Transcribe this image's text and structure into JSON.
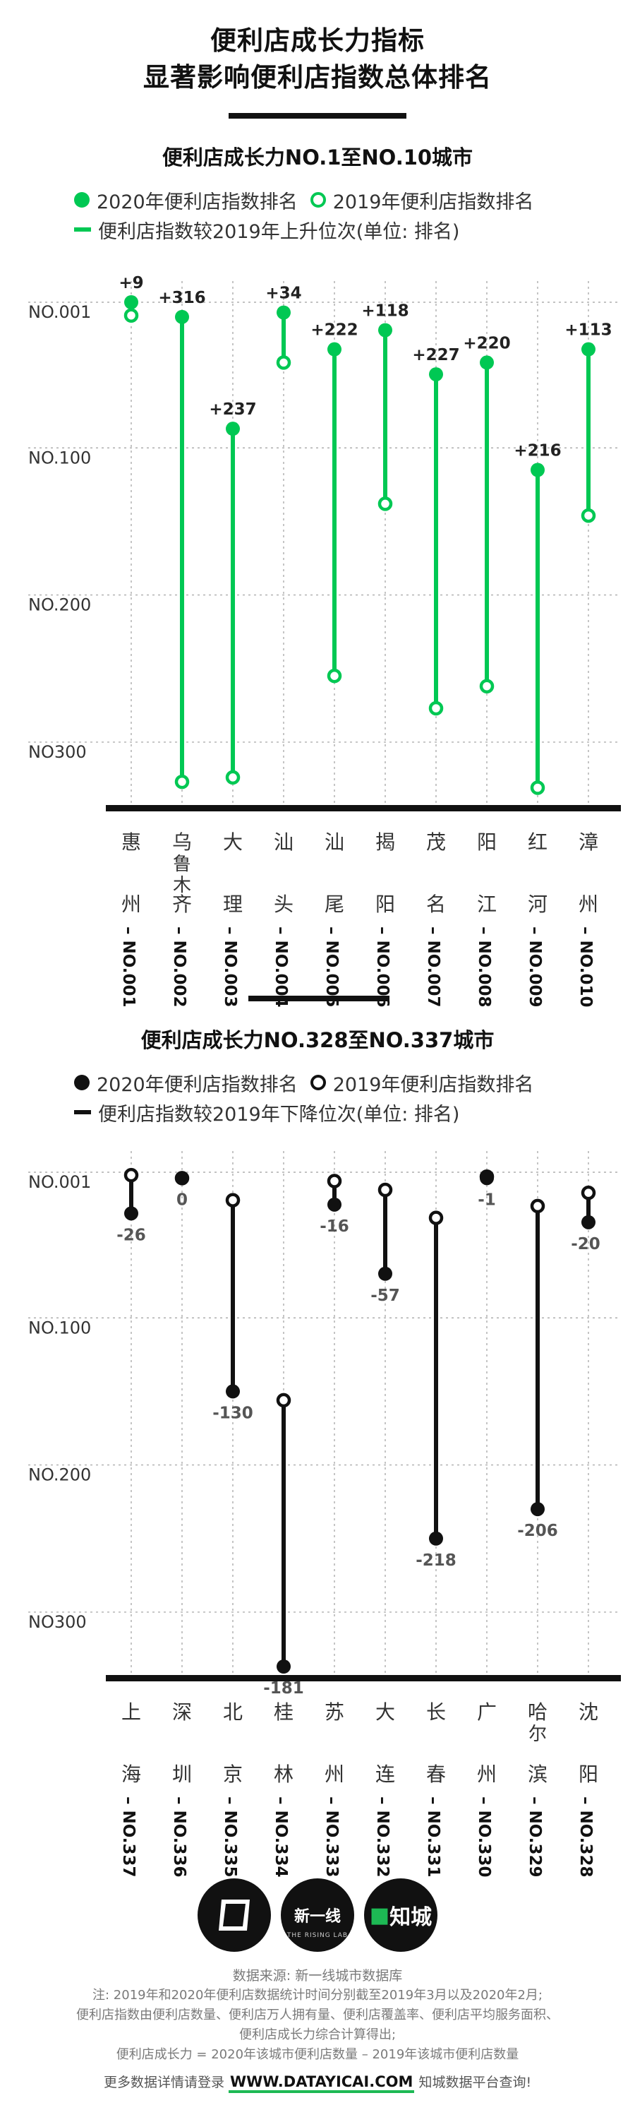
{
  "title": {
    "line1": "便利店成长力指标",
    "line2": "显著影响便利店指数总体排名"
  },
  "colors": {
    "top_accent": "#00c853",
    "bottom_accent": "#111111",
    "grid": "#9e9e9e",
    "axis": "#111111"
  },
  "chart_data": [
    {
      "type": "dumbbell",
      "title": "便利店成长力NO.1至NO.10城市",
      "legend": [
        "2020年便利店指数排名",
        "2019年便利店指数排名",
        "便利店指数较2019年上升位次(单位: 排名)"
      ],
      "y_tick_labels": [
        "NO.001",
        "NO.100",
        "NO.200",
        "NO300"
      ],
      "y_axis": "rank",
      "ylim": [
        1,
        337
      ],
      "y_inverted": true,
      "grid": "dashed",
      "categories": [
        "惠州",
        "乌鲁木齐",
        "大理",
        "汕头",
        "汕尾",
        "揭阳",
        "茂名",
        "阳江",
        "红河",
        "漳州"
      ],
      "growth_rank_labels": [
        "NO.001",
        "NO.002",
        "NO.003",
        "NO.004",
        "NO.005",
        "NO.006",
        "NO.007",
        "NO.008",
        "NO.009",
        "NO.010"
      ],
      "rank_2020": [
        1,
        11,
        87,
        8,
        33,
        20,
        50,
        42,
        115,
        33
      ],
      "rank_2019": [
        10,
        327,
        324,
        42,
        255,
        138,
        277,
        262,
        331,
        146
      ],
      "change_labels": [
        "+9",
        "+316",
        "+237",
        "+34",
        "+222",
        "+118",
        "+227",
        "+220",
        "+216",
        "+113"
      ]
    },
    {
      "type": "dumbbell",
      "title": "便利店成长力NO.328至NO.337城市",
      "legend": [
        "2020年便利店指数排名",
        "2019年便利店指数排名",
        "便利店指数较2019年下降位次(单位: 排名)"
      ],
      "y_tick_labels": [
        "NO.001",
        "NO.100",
        "NO.200",
        "NO300"
      ],
      "y_axis": "rank",
      "ylim": [
        1,
        337
      ],
      "y_inverted": true,
      "grid": "dashed",
      "categories": [
        "上海",
        "深圳",
        "北京",
        "桂林",
        "苏州",
        "大连",
        "长春",
        "广州",
        "哈尔滨",
        "沈阳"
      ],
      "growth_rank_labels": [
        "NO.337",
        "NO.336",
        "NO.335",
        "NO.334",
        "NO.333",
        "NO.332",
        "NO.331",
        "NO.330",
        "NO.329",
        "NO.328"
      ],
      "rank_2020": [
        29,
        5,
        150,
        337,
        23,
        70,
        250,
        5,
        230,
        35
      ],
      "rank_2019": [
        3,
        5,
        20,
        156,
        7,
        13,
        32,
        4,
        24,
        15
      ],
      "change_labels": [
        "-26",
        "0",
        "-130",
        "-181",
        "-16",
        "-57",
        "-218",
        "-1",
        "-206",
        "-20"
      ]
    }
  ],
  "footer": {
    "logos": [
      "新一线",
      "THE RISING LAB",
      "知城"
    ],
    "source": "数据来源: 新一线城市数据库",
    "notes": [
      "注: 2019年和2020年便利店数据统计时间分别截至2019年3月以及2020年2月;",
      "便利店指数由便利店数量、便利店万人拥有量、便利店覆盖率、便利店平均服务面积、",
      "便利店成长力综合计算得出;",
      "便利店成长力 = 2020年该城市便利店数量 – 2019年该城市便利店数量"
    ],
    "cta_prefix": "更多数据详情请登录",
    "url": "WWW.DATAYICAI.COM",
    "cta_suffix": "知城数据平台查询!"
  }
}
